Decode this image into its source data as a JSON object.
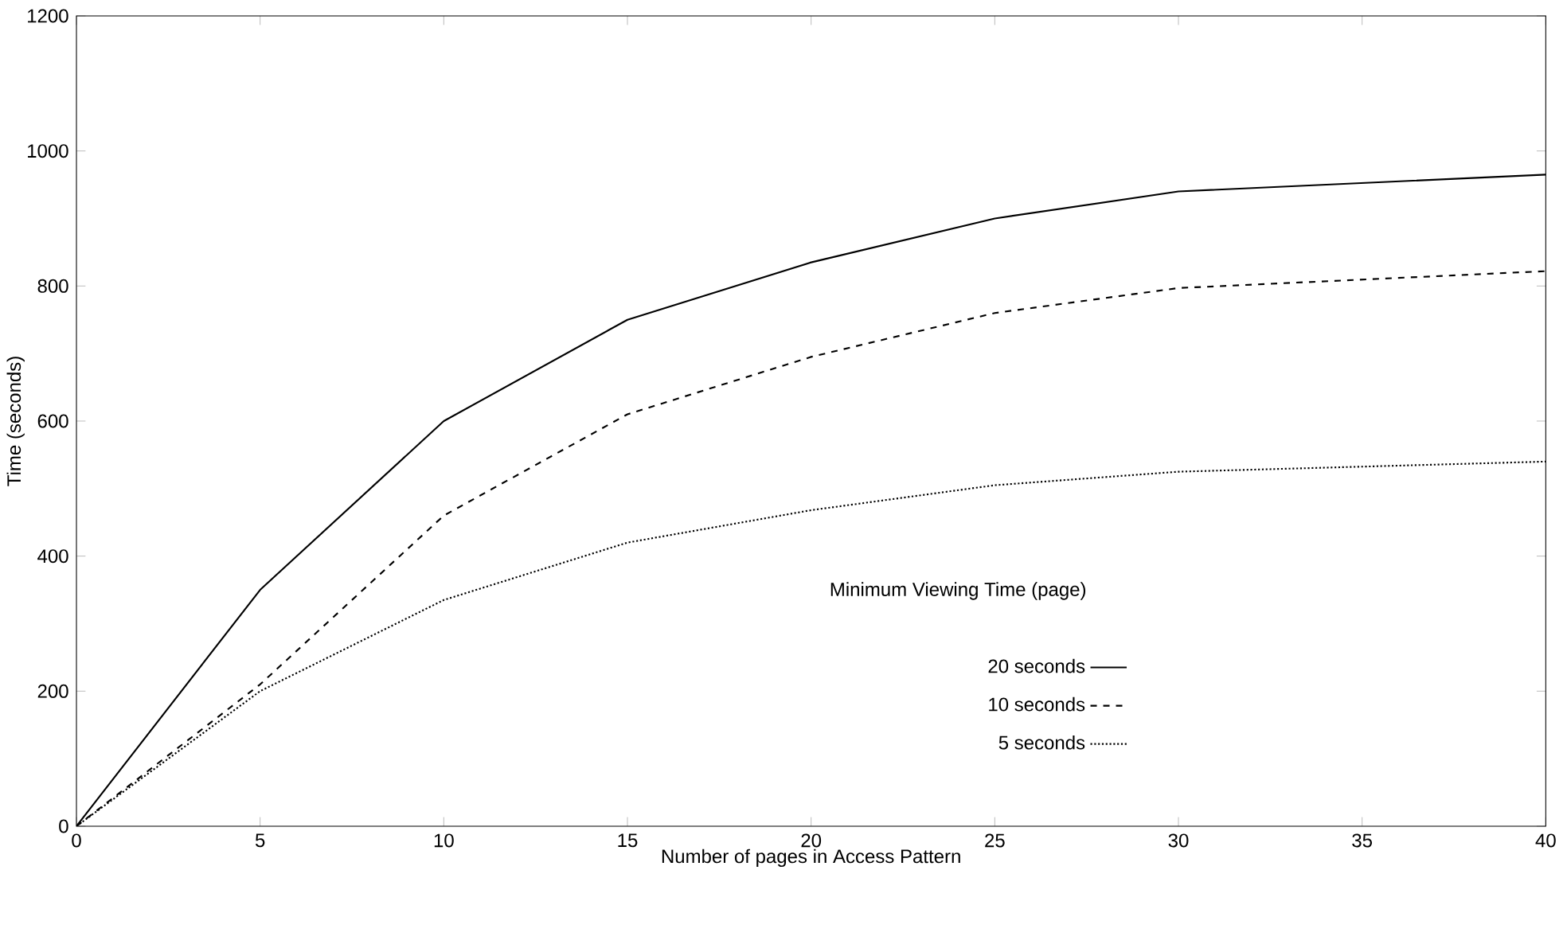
{
  "chart_data": {
    "type": "line",
    "xlabel": "Number of pages in Access Pattern",
    "ylabel": "Time (seconds)",
    "legend_title": "Minimum Viewing Time (page)",
    "x": [
      0,
      5,
      10,
      15,
      20,
      25,
      30,
      40
    ],
    "series": [
      {
        "name": "20 seconds",
        "color": "#000000",
        "line_style": "solid",
        "values": [
          0,
          350,
          600,
          750,
          835,
          900,
          940,
          965
        ]
      },
      {
        "name": "10 seconds",
        "color": "#000000",
        "line_style": "dashed",
        "values": [
          0,
          210,
          460,
          610,
          695,
          760,
          797,
          822
        ]
      },
      {
        "name": "5 seconds",
        "color": "#000000",
        "line_style": "dotted",
        "values": [
          0,
          200,
          335,
          420,
          468,
          505,
          525,
          540
        ]
      }
    ],
    "xlim": [
      0,
      40
    ],
    "xticks": [
      0,
      5,
      10,
      15,
      20,
      25,
      30,
      35,
      40
    ],
    "ylim": [
      0,
      1200
    ],
    "yticks": [
      0,
      200,
      400,
      600,
      800,
      1000,
      1200
    ],
    "grid": false,
    "legend": "bottom right",
    "marker": "none"
  }
}
